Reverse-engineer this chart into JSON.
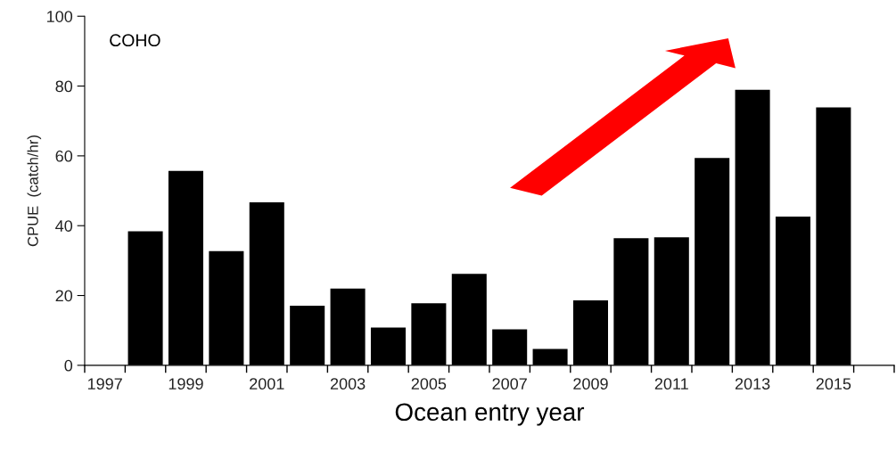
{
  "chart_data": {
    "type": "bar",
    "categories": [
      "1997",
      null,
      "1999",
      null,
      "2001",
      null,
      "2003",
      null,
      "2005",
      null,
      "2007",
      null,
      "2009",
      null,
      "2011",
      null,
      "2013",
      null,
      "2015",
      null
    ],
    "values": [
      null,
      38.4,
      55.7,
      32.7,
      46.7,
      17.1,
      22.0,
      10.8,
      17.8,
      26.2,
      10.3,
      4.7,
      18.6,
      36.4,
      36.7,
      59.4,
      78.9,
      42.6,
      73.9,
      null
    ],
    "color": "#000000",
    "xlabel": "Ocean entry year",
    "ylabel": "CPUE  (catch/hr)",
    "annotations": [
      "COHO"
    ],
    "ylim": [
      0,
      100
    ],
    "yticks": [
      0,
      20,
      40,
      60,
      80,
      100
    ],
    "grid": false
  }
}
